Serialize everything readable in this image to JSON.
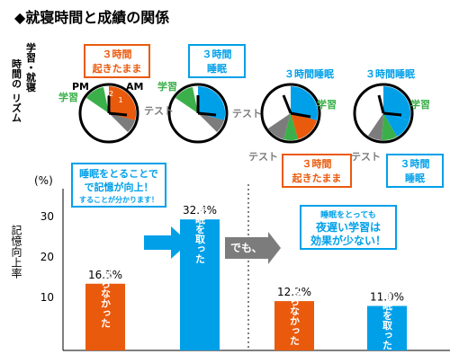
{
  "title": "◆就寝時間と成績の関係",
  "row_label": "学習・就寝時間のリズム",
  "clock_text": {
    "pm": "PM",
    "am": "AM",
    "study": "学習",
    "test": "テスト"
  },
  "callouts": {
    "c1": [
      "３時間",
      "起きたまま"
    ],
    "c2": [
      "３時間",
      "睡眠"
    ],
    "c3_header": "３時間睡眠",
    "c4_header": "３時間睡眠",
    "c5": [
      "３時間",
      "起きたまま"
    ],
    "c6": [
      "３時間",
      "睡眠"
    ]
  },
  "chart_labels": {
    "unit": "(%)",
    "ylabel": "記憶向上率",
    "ticks": [
      "30",
      "20",
      "10"
    ]
  },
  "annotations": {
    "box1": [
      "睡眠をとることで",
      "で記憶が向上！",
      "することが分かります！"
    ],
    "box2": [
      "睡眠をとっても",
      "夜遅い学習は",
      "効果が少ない！"
    ],
    "demo": "でも、"
  },
  "colors": {
    "orange": "#ea5a0d",
    "blue": "#00a0e9",
    "green": "#3bb04a",
    "gray": "#7c7c7c"
  },
  "chart_data": {
    "type": "bar",
    "ylabel": "記憶向上率",
    "unit": "%",
    "ylim": [
      0,
      40
    ],
    "categories": [
      "眠らなかった",
      "睡眠を取った",
      "眠らなかった",
      "睡眠を取った"
    ],
    "values": [
      16.5,
      32.4,
      12.2,
      11.0
    ],
    "value_labels": [
      "16.5%",
      "32.4%",
      "12.2%",
      "11.0%"
    ],
    "bar_colors": [
      "#ea5a0d",
      "#00a0e9",
      "#ea5a0d",
      "#00a0e9"
    ]
  }
}
